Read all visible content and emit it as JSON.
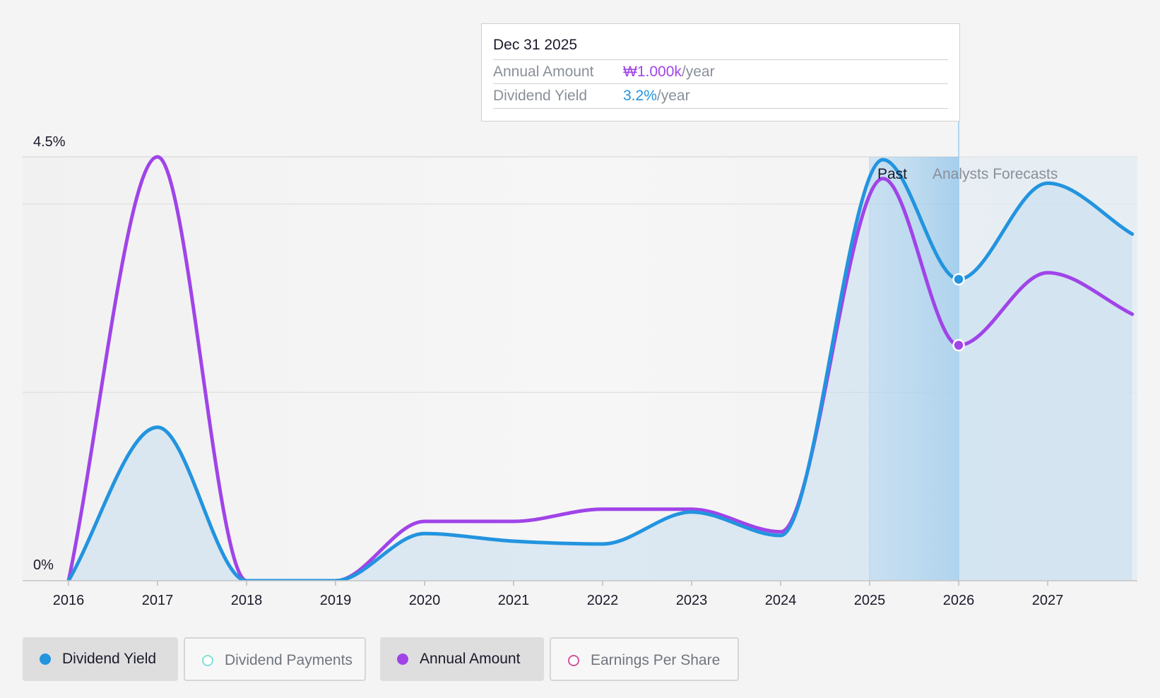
{
  "chart_data": {
    "type": "line",
    "x_labels": [
      "2016",
      "2017",
      "2018",
      "2019",
      "2020",
      "2021",
      "2022",
      "2023",
      "2024",
      "2025",
      "2026",
      "2027"
    ],
    "y_axis": {
      "top_label": "4.5%",
      "bottom_label": "0%",
      "ylim": [
        0,
        4.5
      ],
      "unit": "%"
    },
    "x_range": [
      2015.5,
      2027.95
    ],
    "grid": true,
    "regions": {
      "past_label": "Past",
      "forecast_label": "Analysts Forecasts",
      "past_end": 2025.57,
      "highlight_start": 2025.0,
      "forecast_start": 2026.0
    },
    "series": [
      {
        "name": "Dividend Yield",
        "color": "#2394df",
        "points": [
          [
            2016.0,
            0.0
          ],
          [
            2017.0,
            1.63
          ],
          [
            2018.0,
            0.0
          ],
          [
            2019.0,
            0.0
          ],
          [
            2020.0,
            0.5
          ],
          [
            2021.0,
            0.42
          ],
          [
            2022.0,
            0.39
          ],
          [
            2023.0,
            0.73
          ],
          [
            2024.0,
            0.48
          ],
          [
            2025.15,
            4.47
          ],
          [
            2026.0,
            3.2
          ],
          [
            2027.0,
            4.22
          ],
          [
            2027.95,
            3.68
          ]
        ],
        "marker_at": 2026.0
      },
      {
        "name": "Annual Amount",
        "color": "#a044e8",
        "points": [
          [
            2016.0,
            0.0
          ],
          [
            2017.0,
            4.5
          ],
          [
            2018.0,
            0.0
          ],
          [
            2019.0,
            0.0
          ],
          [
            2020.0,
            0.63
          ],
          [
            2021.0,
            0.63
          ],
          [
            2022.0,
            0.76
          ],
          [
            2023.0,
            0.76
          ],
          [
            2024.0,
            0.52
          ],
          [
            2025.15,
            4.27
          ],
          [
            2026.0,
            2.5
          ],
          [
            2027.0,
            3.27
          ],
          [
            2027.95,
            2.83
          ]
        ],
        "marker_at": 2026.0
      }
    ]
  },
  "tooltip": {
    "date": "Dec 31 2025",
    "rows": [
      {
        "label": "Annual Amount",
        "value": "₩1.000k",
        "unit": "/year",
        "color": "#a044e8"
      },
      {
        "label": "Dividend Yield",
        "value": "3.2%",
        "unit": "/year",
        "color": "#2394df"
      }
    ]
  },
  "legend": [
    {
      "label": "Dividend Yield",
      "active": true,
      "color": "#2394df",
      "filled": true
    },
    {
      "label": "Dividend Payments",
      "active": false,
      "color": "#7fe0d8",
      "filled": false
    },
    {
      "label": "Annual Amount",
      "active": true,
      "color": "#a044e8",
      "filled": true
    },
    {
      "label": "Earnings Per Share",
      "active": false,
      "color": "#d0569a",
      "filled": false
    }
  ]
}
